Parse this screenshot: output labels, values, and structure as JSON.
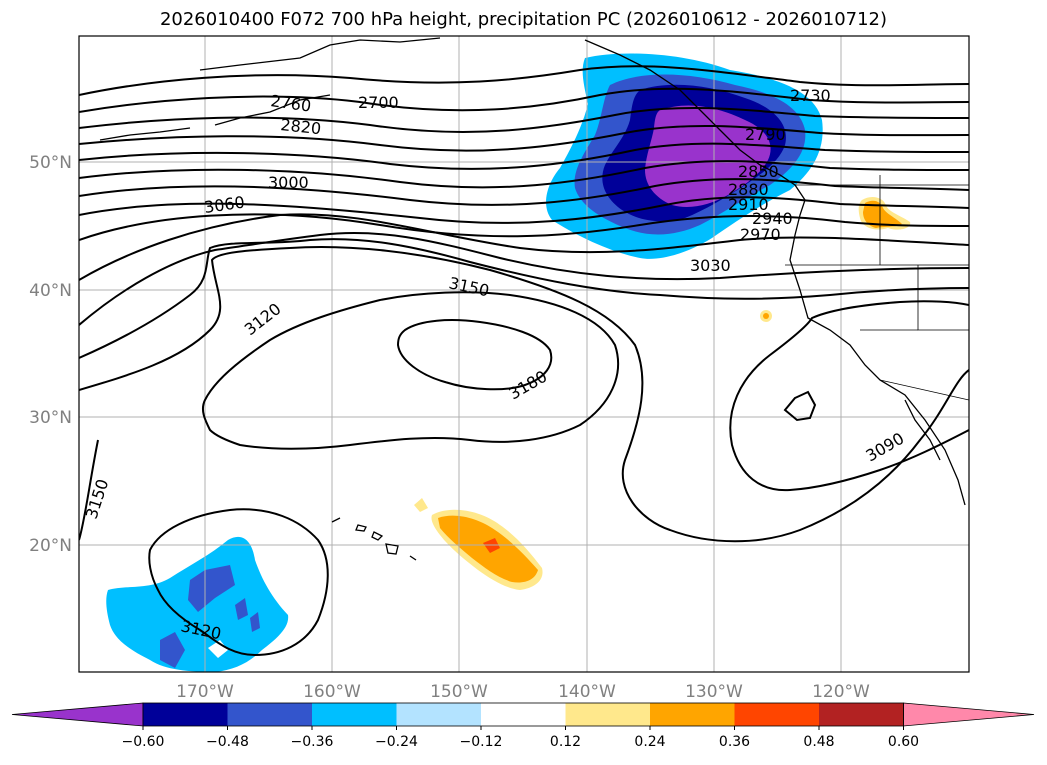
{
  "title": "2026010400 F072 700 hPa height, precipitation PC (2026010612 - 2026010712)",
  "lat_labels": [
    "50°N",
    "40°N",
    "30°N",
    "20°N"
  ],
  "lon_labels": [
    "170°W",
    "160°W",
    "150°W",
    "140°W",
    "130°W",
    "120°W"
  ],
  "contour_labels": [
    "2700",
    "2730",
    "2760",
    "2790",
    "2820",
    "2850",
    "2880",
    "2910",
    "2940",
    "2970",
    "3000",
    "3030",
    "3060",
    "3090",
    "3120",
    "3120",
    "3150",
    "3150",
    "3180"
  ],
  "colorbar": {
    "colors": [
      "#9933cc",
      "#000099",
      "#3355cc",
      "#00bfff",
      "#b3e3ff",
      "#ffffff",
      "#ffe88c",
      "#ffa500",
      "#ff4500",
      "#b22222",
      "#ff88aa"
    ],
    "ticks": [
      "−0.60",
      "−0.48",
      "−0.36",
      "−0.24",
      "−0.12",
      "0.12",
      "0.24",
      "0.36",
      "0.48",
      "0.60"
    ]
  },
  "colors": {
    "grid": "#b0b0b0",
    "contour": "#000000"
  }
}
